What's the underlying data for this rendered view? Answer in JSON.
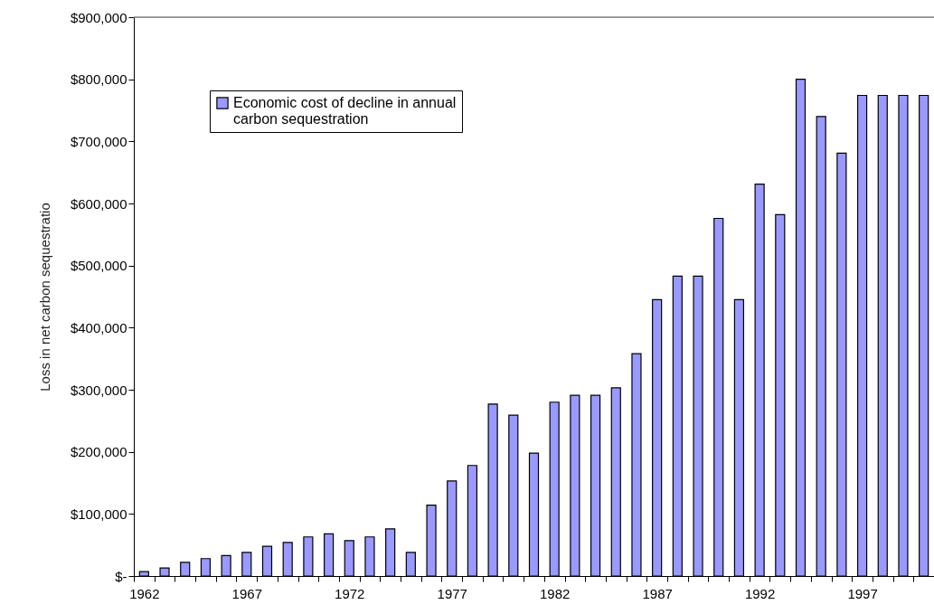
{
  "chart_data": {
    "type": "bar",
    "ylabel": "Loss in net carbon sequestratio",
    "categories": [
      "1962",
      null,
      null,
      null,
      null,
      "1967",
      null,
      null,
      null,
      null,
      "1972",
      null,
      null,
      null,
      null,
      "1977",
      null,
      null,
      null,
      null,
      "1982",
      null,
      null,
      null,
      null,
      "1987",
      null,
      null,
      null,
      null,
      "1992",
      null,
      null,
      null,
      null,
      "1997",
      null,
      null,
      null
    ],
    "series": [
      {
        "name": "Economic cost of decline in annual carbon sequestration",
        "color": "#9999ff",
        "values": [
          7000,
          13000,
          22000,
          28000,
          33000,
          38000,
          48000,
          54000,
          63000,
          68000,
          57000,
          63000,
          76000,
          38000,
          114000,
          153000,
          178000,
          277000,
          259000,
          198000,
          280000,
          291000,
          291000,
          303000,
          358000,
          445000,
          483000,
          483000,
          576000,
          445000,
          631000,
          582000,
          800000,
          740000,
          681000,
          774000,
          774000,
          774000,
          774000
        ]
      }
    ],
    "ylim": [
      0,
      900000
    ],
    "yticks": [
      {
        "value": 0,
        "label": "$-"
      },
      {
        "value": 100000,
        "label": "$100,000"
      },
      {
        "value": 200000,
        "label": "$200,000"
      },
      {
        "value": 300000,
        "label": "$300,000"
      },
      {
        "value": 400000,
        "label": "$400,000"
      },
      {
        "value": 500000,
        "label": "$500,000"
      },
      {
        "value": 600000,
        "label": "$600,000"
      },
      {
        "value": 700000,
        "label": "$700,000"
      },
      {
        "value": 800000,
        "label": "$800,000"
      },
      {
        "value": 900000,
        "label": "$900,000"
      }
    ],
    "grid": false,
    "legend": "top left"
  }
}
